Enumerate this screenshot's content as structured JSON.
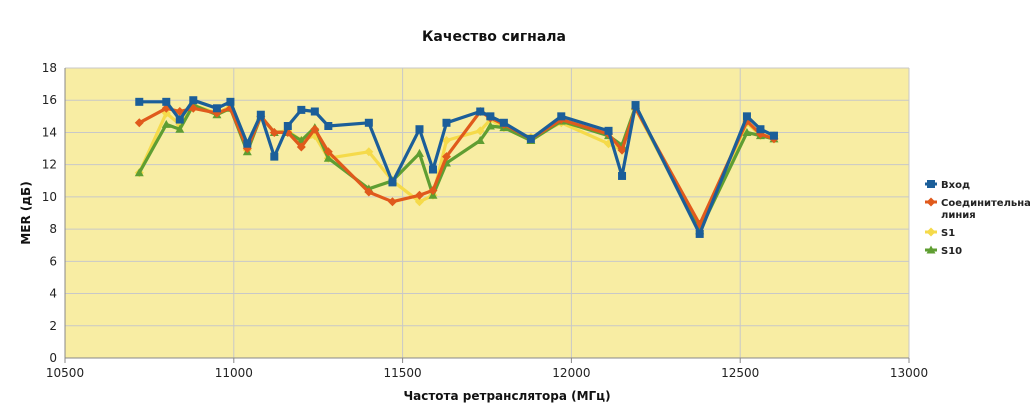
{
  "chart_data": {
    "type": "line",
    "title": "Качество сигнала",
    "xlabel": "Частота ретранслятора (МГц)",
    "ylabel": "MER (дБ)",
    "xlim": [
      10500,
      13000
    ],
    "ylim": [
      0,
      18
    ],
    "x_ticks": [
      "10500",
      "11000",
      "11500",
      "12000",
      "12500",
      "13000"
    ],
    "y_ticks": [
      "0",
      "2",
      "4",
      "6",
      "8",
      "10",
      "12",
      "14",
      "16",
      "18"
    ],
    "grid": true,
    "legend_position": "right",
    "plot_background": "#f8eda3",
    "page_background": "#ffffff",
    "gridline_color": "#c8c8c8",
    "series": [
      {
        "name": "S1",
        "color": "#f5da4a",
        "marker": "diamond",
        "points": [
          [
            10720,
            11.5
          ],
          [
            10800,
            15.2
          ],
          [
            10840,
            14.5
          ],
          [
            10880,
            15.7
          ],
          [
            10950,
            15.2
          ],
          [
            10990,
            15.6
          ],
          [
            11040,
            12.9
          ],
          [
            11080,
            15.0
          ],
          [
            11120,
            14.0
          ],
          [
            11160,
            14.1
          ],
          [
            11200,
            13.5
          ],
          [
            11240,
            13.8
          ],
          [
            11280,
            12.4
          ],
          [
            11400,
            12.8
          ],
          [
            11470,
            11.0
          ],
          [
            11550,
            9.7
          ],
          [
            11590,
            10.1
          ],
          [
            11630,
            13.5
          ],
          [
            11730,
            14.1
          ],
          [
            11760,
            14.8
          ],
          [
            11800,
            14.3
          ],
          [
            11880,
            13.7
          ],
          [
            11970,
            14.6
          ],
          [
            12110,
            13.3
          ],
          [
            12150,
            12.9
          ],
          [
            12190,
            15.5
          ],
          [
            12380,
            7.9
          ],
          [
            12520,
            14.6
          ],
          [
            12560,
            13.8
          ],
          [
            12600,
            13.8
          ]
        ]
      },
      {
        "name": "S10",
        "color": "#5f9e32",
        "marker": "triangle",
        "points": [
          [
            10720,
            11.5
          ],
          [
            10800,
            14.5
          ],
          [
            10840,
            14.2
          ],
          [
            10880,
            15.7
          ],
          [
            10950,
            15.1
          ],
          [
            10990,
            15.5
          ],
          [
            11040,
            12.8
          ],
          [
            11080,
            15.0
          ],
          [
            11120,
            14.0
          ],
          [
            11160,
            14.0
          ],
          [
            11200,
            13.5
          ],
          [
            11240,
            14.3
          ],
          [
            11280,
            12.4
          ],
          [
            11400,
            10.5
          ],
          [
            11470,
            11.0
          ],
          [
            11550,
            12.7
          ],
          [
            11590,
            10.1
          ],
          [
            11630,
            12.1
          ],
          [
            11730,
            13.5
          ],
          [
            11760,
            14.4
          ],
          [
            11800,
            14.3
          ],
          [
            11880,
            13.5
          ],
          [
            11970,
            14.7
          ],
          [
            12110,
            13.8
          ],
          [
            12150,
            13.2
          ],
          [
            12190,
            15.6
          ],
          [
            12380,
            7.9
          ],
          [
            12520,
            14.0
          ],
          [
            12560,
            13.8
          ],
          [
            12600,
            13.6
          ]
        ]
      },
      {
        "name": "Соединительная линия",
        "color": "#e05a1c",
        "marker": "diamond",
        "points": [
          [
            10720,
            14.6
          ],
          [
            10800,
            15.5
          ],
          [
            10840,
            15.3
          ],
          [
            10880,
            15.5
          ],
          [
            10950,
            15.2
          ],
          [
            10990,
            15.5
          ],
          [
            11040,
            13.0
          ],
          [
            11080,
            15.0
          ],
          [
            11120,
            14.0
          ],
          [
            11160,
            14.0
          ],
          [
            11200,
            13.1
          ],
          [
            11240,
            14.2
          ],
          [
            11280,
            12.8
          ],
          [
            11400,
            10.3
          ],
          [
            11470,
            9.7
          ],
          [
            11550,
            10.1
          ],
          [
            11590,
            10.4
          ],
          [
            11630,
            12.5
          ],
          [
            11730,
            15.3
          ],
          [
            11760,
            14.9
          ],
          [
            11800,
            14.5
          ],
          [
            11880,
            13.6
          ],
          [
            11970,
            14.8
          ],
          [
            12110,
            13.9
          ],
          [
            12150,
            12.9
          ],
          [
            12190,
            15.5
          ],
          [
            12380,
            8.3
          ],
          [
            12520,
            14.7
          ],
          [
            12560,
            13.9
          ],
          [
            12600,
            13.6
          ]
        ]
      },
      {
        "name": "Вход",
        "color": "#1b5e99",
        "marker": "square",
        "points": [
          [
            10720,
            15.9
          ],
          [
            10800,
            15.9
          ],
          [
            10840,
            14.8
          ],
          [
            10880,
            16.0
          ],
          [
            10950,
            15.5
          ],
          [
            10990,
            15.9
          ],
          [
            11040,
            13.3
          ],
          [
            11080,
            15.1
          ],
          [
            11120,
            12.5
          ],
          [
            11160,
            14.4
          ],
          [
            11200,
            15.4
          ],
          [
            11240,
            15.3
          ],
          [
            11280,
            14.4
          ],
          [
            11400,
            14.6
          ],
          [
            11470,
            10.9
          ],
          [
            11550,
            14.2
          ],
          [
            11590,
            11.7
          ],
          [
            11630,
            14.6
          ],
          [
            11730,
            15.3
          ],
          [
            11760,
            15.0
          ],
          [
            11800,
            14.6
          ],
          [
            11880,
            13.6
          ],
          [
            11970,
            15.0
          ],
          [
            12110,
            14.1
          ],
          [
            12150,
            11.3
          ],
          [
            12190,
            15.7
          ],
          [
            12380,
            7.7
          ],
          [
            12520,
            15.0
          ],
          [
            12560,
            14.2
          ],
          [
            12600,
            13.8
          ]
        ]
      }
    ],
    "legend": [
      {
        "name": "Вход",
        "label_lines": [
          "Вход"
        ],
        "color": "#1b5e99",
        "marker": "square"
      },
      {
        "name": "Соединительная линия",
        "label_lines": [
          "Соединительная",
          "линия"
        ],
        "color": "#e05a1c",
        "marker": "diamond"
      },
      {
        "name": "S1",
        "label_lines": [
          "S1"
        ],
        "color": "#f5da4a",
        "marker": "diamond"
      },
      {
        "name": "S10",
        "label_lines": [
          "S10"
        ],
        "color": "#5f9e32",
        "marker": "triangle"
      }
    ]
  }
}
